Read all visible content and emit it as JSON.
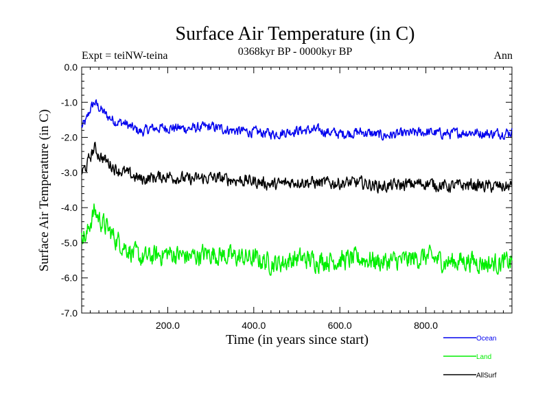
{
  "chart_data": {
    "type": "line",
    "title": "Surface Air Temperature (in C)",
    "subtitle": "0368kyr BP - 0000kyr BP",
    "expt_label": "Expt = teiNW-teina",
    "season_label": "Ann",
    "xlabel": "Time (in years since start)",
    "ylabel": "Surface Air Temperature (in C)",
    "xlim": [
      0,
      1000
    ],
    "ylim": [
      -7.0,
      0.0
    ],
    "x_ticks": [
      200,
      400,
      600,
      800
    ],
    "x_tick_labels": [
      "200.0",
      "400.0",
      "600.0",
      "800.0"
    ],
    "y_ticks": [
      0,
      -1,
      -2,
      -3,
      -4,
      -5,
      -6,
      -7
    ],
    "y_tick_labels": [
      "0.0",
      "-1.0",
      "-2.0",
      "-3.0",
      "-4.0",
      "-5.0",
      "-6.0",
      "-7.0"
    ],
    "series": [
      {
        "name": "Ocean",
        "color": "#0000ee",
        "anchors": [
          [
            0,
            -1.7
          ],
          [
            10,
            -1.55
          ],
          [
            20,
            -1.2
          ],
          [
            30,
            -1.0
          ],
          [
            40,
            -1.15
          ],
          [
            60,
            -1.4
          ],
          [
            80,
            -1.55
          ],
          [
            100,
            -1.6
          ],
          [
            120,
            -1.75
          ],
          [
            140,
            -1.85
          ],
          [
            160,
            -1.75
          ],
          [
            200,
            -1.72
          ],
          [
            250,
            -1.75
          ],
          [
            300,
            -1.7
          ],
          [
            350,
            -1.8
          ],
          [
            400,
            -1.85
          ],
          [
            450,
            -1.9
          ],
          [
            500,
            -1.8
          ],
          [
            550,
            -1.8
          ],
          [
            600,
            -1.9
          ],
          [
            650,
            -1.85
          ],
          [
            700,
            -1.95
          ],
          [
            750,
            -1.9
          ],
          [
            800,
            -1.85
          ],
          [
            850,
            -1.9
          ],
          [
            900,
            -1.85
          ],
          [
            950,
            -1.9
          ],
          [
            1000,
            -1.85
          ]
        ],
        "noise": 0.14
      },
      {
        "name": "Land",
        "color": "#00ee00",
        "anchors": [
          [
            0,
            -4.6
          ],
          [
            10,
            -4.9
          ],
          [
            20,
            -4.4
          ],
          [
            30,
            -4.1
          ],
          [
            40,
            -4.3
          ],
          [
            60,
            -4.6
          ],
          [
            80,
            -4.9
          ],
          [
            100,
            -5.1
          ],
          [
            120,
            -5.3
          ],
          [
            140,
            -5.45
          ],
          [
            160,
            -5.4
          ],
          [
            200,
            -5.3
          ],
          [
            250,
            -5.4
          ],
          [
            300,
            -5.3
          ],
          [
            350,
            -5.4
          ],
          [
            400,
            -5.45
          ],
          [
            450,
            -5.6
          ],
          [
            500,
            -5.45
          ],
          [
            550,
            -5.5
          ],
          [
            600,
            -5.5
          ],
          [
            650,
            -5.45
          ],
          [
            700,
            -5.55
          ],
          [
            750,
            -5.5
          ],
          [
            800,
            -5.4
          ],
          [
            850,
            -5.55
          ],
          [
            900,
            -5.5
          ],
          [
            950,
            -5.6
          ],
          [
            1000,
            -5.55
          ]
        ],
        "noise": 0.28
      },
      {
        "name": "AllSurf",
        "color": "#000000",
        "anchors": [
          [
            0,
            -3.0
          ],
          [
            10,
            -2.85
          ],
          [
            20,
            -2.55
          ],
          [
            30,
            -2.3
          ],
          [
            40,
            -2.5
          ],
          [
            60,
            -2.7
          ],
          [
            80,
            -2.9
          ],
          [
            100,
            -3.0
          ],
          [
            120,
            -3.1
          ],
          [
            140,
            -3.2
          ],
          [
            160,
            -3.15
          ],
          [
            200,
            -3.1
          ],
          [
            250,
            -3.2
          ],
          [
            300,
            -3.15
          ],
          [
            350,
            -3.2
          ],
          [
            400,
            -3.25
          ],
          [
            450,
            -3.35
          ],
          [
            500,
            -3.25
          ],
          [
            550,
            -3.3
          ],
          [
            600,
            -3.3
          ],
          [
            650,
            -3.3
          ],
          [
            700,
            -3.4
          ],
          [
            750,
            -3.35
          ],
          [
            800,
            -3.3
          ],
          [
            850,
            -3.4
          ],
          [
            900,
            -3.35
          ],
          [
            950,
            -3.4
          ],
          [
            1000,
            -3.4
          ]
        ],
        "noise": 0.17
      }
    ],
    "legend_position": "bottom-right"
  }
}
